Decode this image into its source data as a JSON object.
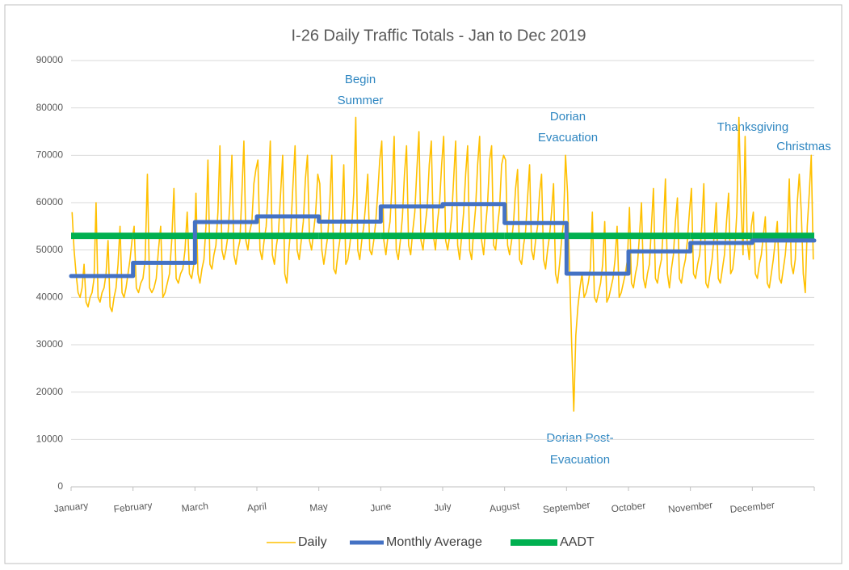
{
  "chart_data": {
    "type": "line",
    "title": "I-26 Daily Traffic Totals - Jan to Dec 2019",
    "categories": [
      "January",
      "February",
      "March",
      "April",
      "May",
      "June",
      "July",
      "August",
      "September",
      "October",
      "November",
      "December"
    ],
    "ylim": [
      0,
      90000
    ],
    "yticks": [
      0,
      10000,
      20000,
      30000,
      40000,
      50000,
      60000,
      70000,
      80000,
      90000
    ],
    "grid": true,
    "legend": "bottom",
    "series": [
      {
        "name": "Daily",
        "color": "#ffc000",
        "values": [
          [
            58000,
            50000,
            45000,
            41000,
            40000,
            42000,
            47000,
            39000,
            38000,
            40000,
            41000,
            44000,
            60000,
            40000,
            39000,
            41000,
            42000,
            45000,
            52000,
            38000,
            37000,
            40000,
            42000,
            47000,
            55000,
            41000,
            40000,
            42000,
            45000,
            48000,
            52000
          ],
          [
            55000,
            42000,
            41000,
            43000,
            44000,
            48000,
            66000,
            42000,
            41000,
            42000,
            44000,
            50000,
            55000,
            40000,
            41000,
            43000,
            45000,
            52000,
            63000,
            44000,
            43000,
            45000,
            46000,
            50000,
            58000,
            45000,
            44000,
            47000
          ],
          [
            62000,
            45000,
            43000,
            46000,
            48000,
            55000,
            69000,
            47000,
            46000,
            49000,
            51000,
            58000,
            72000,
            50000,
            48000,
            50000,
            53000,
            60000,
            70000,
            49000,
            47000,
            50000,
            52000,
            62000,
            73000,
            52000,
            50000,
            54000,
            56000,
            64000,
            67000
          ],
          [
            69000,
            50000,
            48000,
            52000,
            55000,
            63000,
            73000,
            49000,
            47000,
            51000,
            54000,
            62000,
            70000,
            45000,
            43000,
            50000,
            55000,
            64000,
            72000,
            50000,
            48000,
            52000,
            56000,
            65000,
            70000,
            52000,
            50000,
            54000,
            58000,
            66000
          ],
          [
            64000,
            50000,
            47000,
            50000,
            53000,
            60000,
            70000,
            46000,
            45000,
            49000,
            52000,
            58000,
            68000,
            47000,
            48000,
            51000,
            55000,
            62000,
            78000,
            50000,
            48000,
            52000,
            55000,
            60000,
            66000,
            50000,
            49000,
            52000,
            56000,
            62000,
            69000
          ],
          [
            73000,
            52000,
            49000,
            53000,
            56000,
            64000,
            74000,
            50000,
            48000,
            52000,
            57000,
            66000,
            72000,
            51000,
            49000,
            54000,
            58000,
            67000,
            75000,
            52000,
            50000,
            55000,
            59000,
            68000,
            73000,
            53000,
            50000,
            56000,
            60000,
            68000
          ],
          [
            74000,
            52000,
            50000,
            53000,
            57000,
            65000,
            73000,
            51000,
            48000,
            53000,
            58000,
            66000,
            72000,
            50000,
            48000,
            54000,
            59000,
            68000,
            74000,
            52000,
            49000,
            55000,
            60000,
            69000,
            72000,
            51000,
            50000,
            55000,
            59000,
            68000,
            70000
          ],
          [
            69000,
            51000,
            49000,
            52000,
            56000,
            63000,
            67000,
            48000,
            47000,
            51000,
            54000,
            61000,
            68000,
            50000,
            48000,
            52000,
            55000,
            62000,
            66000,
            48000,
            46000,
            50000,
            53000,
            58000,
            64000,
            45000,
            43000,
            47000,
            52000,
            56000,
            70000
          ],
          [
            62000,
            45000,
            30000,
            16000,
            32000,
            38000,
            42000,
            45000,
            40000,
            41000,
            43000,
            46000,
            58000,
            40000,
            39000,
            41000,
            43000,
            47000,
            56000,
            39000,
            40000,
            42000,
            44000,
            48000,
            55000,
            40000,
            41000,
            43000,
            45000,
            48000
          ],
          [
            59000,
            43000,
            42000,
            45000,
            47000,
            53000,
            60000,
            44000,
            42000,
            45000,
            47000,
            55000,
            63000,
            44000,
            43000,
            46000,
            48000,
            55000,
            65000,
            45000,
            42000,
            46000,
            49000,
            56000,
            61000,
            44000,
            43000,
            46000,
            48000,
            52000,
            58000
          ],
          [
            63000,
            45000,
            44000,
            47000,
            49000,
            55000,
            64000,
            43000,
            42000,
            45000,
            48000,
            53000,
            60000,
            44000,
            43000,
            46000,
            49000,
            56000,
            62000,
            45000,
            46000,
            50000,
            58000,
            78000,
            60000,
            49000,
            74000,
            52000,
            48000,
            55000
          ],
          [
            58000,
            45000,
            44000,
            47000,
            49000,
            53000,
            57000,
            43000,
            42000,
            45000,
            48000,
            52000,
            56000,
            44000,
            43000,
            46000,
            49000,
            54000,
            65000,
            47000,
            45000,
            48000,
            60000,
            66000,
            58000,
            45000,
            41000,
            55000,
            62000,
            70000,
            48000
          ]
        ]
      },
      {
        "name": "Monthly Average",
        "color": "#4472c4",
        "values": [
          44500,
          47300,
          55900,
          57100,
          56000,
          59200,
          59700,
          55700,
          45000,
          49700,
          51500,
          52000
        ]
      },
      {
        "name": "AADT",
        "color": "#00b050",
        "values": [
          53000,
          53000,
          53000,
          53000,
          53000,
          53000,
          53000,
          53000,
          53000,
          53000,
          53000,
          53000
        ]
      }
    ],
    "annotations": [
      {
        "lines": [
          "Begin",
          "Summer"
        ]
      },
      {
        "lines": [
          "Dorian",
          "Evacuation"
        ]
      },
      {
        "lines": [
          "Thanksgiving"
        ]
      },
      {
        "lines": [
          "Christmas"
        ]
      },
      {
        "lines": [
          "Dorian Post-",
          "Evacuation"
        ]
      }
    ]
  }
}
